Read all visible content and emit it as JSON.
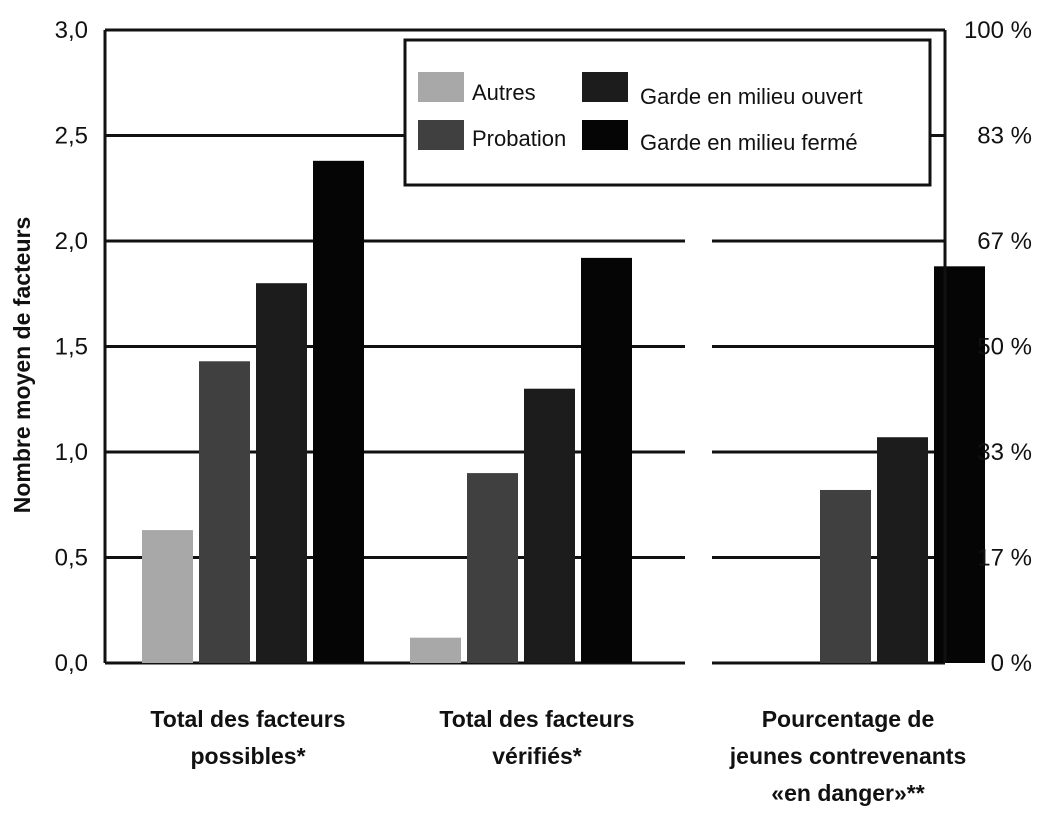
{
  "chart_data": {
    "type": "bar",
    "ylabel": "Nombre moyen de facteurs",
    "ylim": [
      0,
      3
    ],
    "y_ticks": [
      "0,0",
      "0,5",
      "1,0",
      "1,5",
      "2,0",
      "2,5",
      "3,0"
    ],
    "y2_ticks": [
      "0 %",
      "17 %",
      "33 %",
      "50 %",
      "67 %",
      "83 %",
      "100 %"
    ],
    "y2lim": [
      0,
      100
    ],
    "grid": true,
    "legend_position": "top-right",
    "categories": [
      [
        "Total des facteurs",
        "possibles*"
      ],
      [
        "Total des facteurs",
        "vérifiés*"
      ],
      [
        "Pourcentage de",
        "jeunes contrevenants",
        "«en danger»**"
      ]
    ],
    "series": [
      {
        "name": "Autres",
        "color": "#a8a8a8",
        "values": [
          0.63,
          0.12,
          null
        ]
      },
      {
        "name": "Probation",
        "color": "#404040",
        "values": [
          1.43,
          0.9,
          0.82
        ]
      },
      {
        "name": "Garde en milieu ouvert",
        "color": "#1c1c1c",
        "values": [
          1.8,
          1.3,
          1.07
        ]
      },
      {
        "name": "Garde en milieu fermé",
        "color": "#050505",
        "values": [
          2.38,
          1.92,
          1.88
        ]
      }
    ]
  }
}
